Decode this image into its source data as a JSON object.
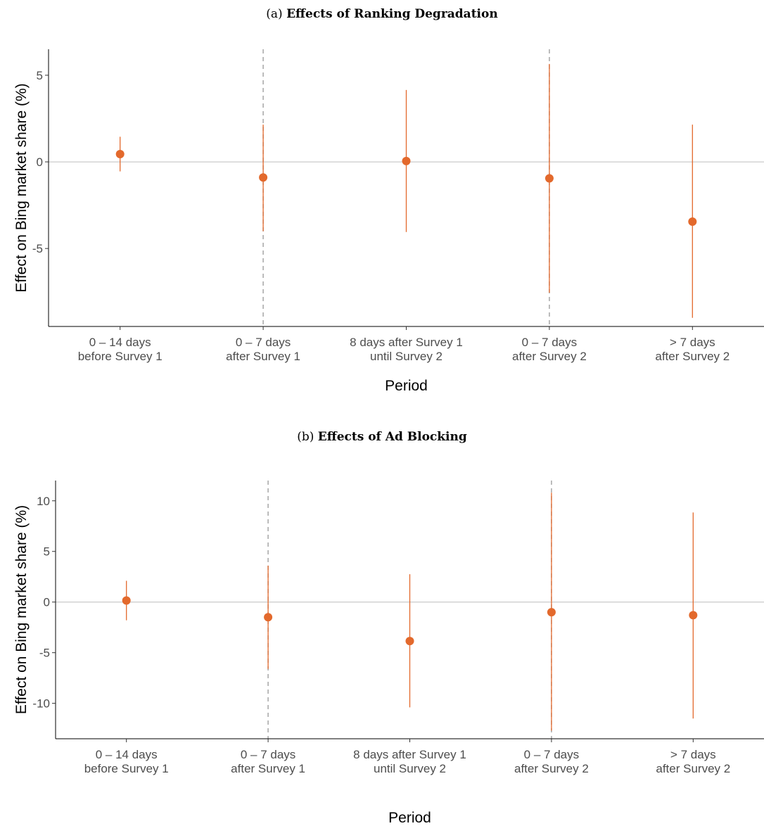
{
  "chart_data": [
    {
      "type": "scatter",
      "panel_label": "(a)",
      "title": "Effects of Ranking Degradation",
      "xlabel": "Period",
      "ylabel": "Effect on Bing market share (%)",
      "categories": [
        [
          "0 – 14 days",
          "before Survey 1"
        ],
        [
          "0 – 7 days",
          "after Survey 1"
        ],
        [
          "8 days after Survey 1",
          "until Survey 2"
        ],
        [
          "0 – 7 days",
          "after Survey 2"
        ],
        [
          "> 7 days",
          "after Survey 2"
        ]
      ],
      "estimates": [
        0.45,
        -0.9,
        0.05,
        -0.95,
        -3.45
      ],
      "ci_low": [
        -0.55,
        -4.0,
        -4.05,
        -7.55,
        -9.0
      ],
      "ci_high": [
        1.45,
        2.15,
        4.15,
        5.65,
        2.15
      ],
      "yticks": [
        -5,
        0,
        5
      ],
      "ylim": [
        -9.5,
        6.5
      ],
      "reference_line": 0,
      "separators_after_category": [
        1,
        3
      ],
      "color": "#e3692c"
    },
    {
      "type": "scatter",
      "panel_label": "(b)",
      "title": "Effects of Ad Blocking",
      "xlabel": "Period",
      "ylabel": "Effect on Bing market share (%)",
      "categories": [
        [
          "0 – 14 days",
          "before Survey 1"
        ],
        [
          "0 – 7 days",
          "after Survey 1"
        ],
        [
          "8 days after Survey 1",
          "until Survey 2"
        ],
        [
          "0 – 7 days",
          "after Survey 2"
        ],
        [
          "> 7 days",
          "after Survey 2"
        ]
      ],
      "estimates": [
        0.15,
        -1.5,
        -3.85,
        -1.0,
        -1.3
      ],
      "ci_low": [
        -1.8,
        -6.6,
        -10.4,
        -12.7,
        -11.5
      ],
      "ci_high": [
        2.1,
        3.6,
        2.75,
        10.8,
        8.85
      ],
      "yticks": [
        -10,
        -5,
        0,
        5,
        10
      ],
      "ylim": [
        -13.5,
        12
      ],
      "reference_line": 0,
      "separators_after_category": [
        1,
        3
      ],
      "color": "#e3692c"
    }
  ]
}
